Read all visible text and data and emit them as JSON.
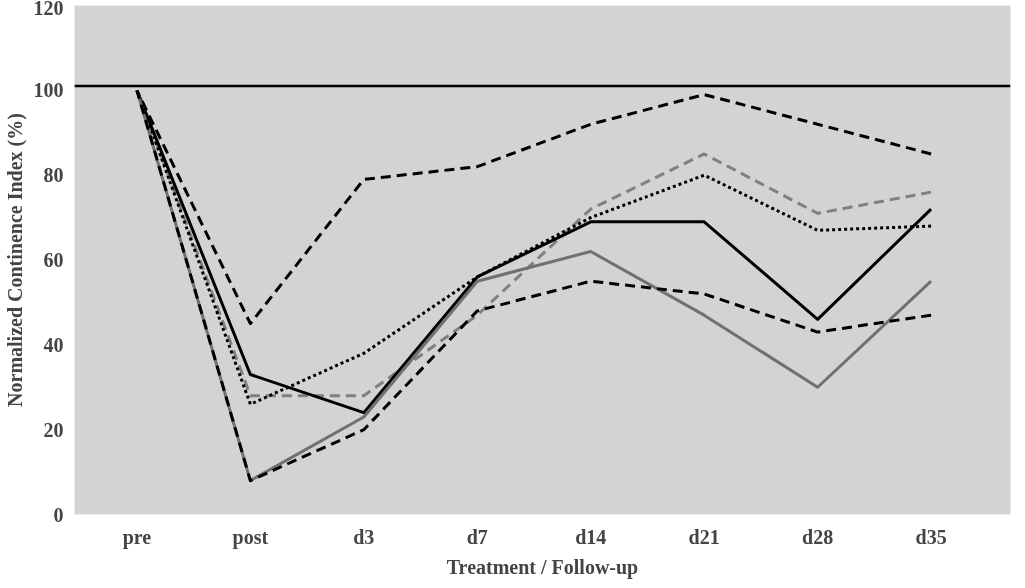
{
  "chart_data": {
    "type": "line",
    "xlabel": "Treatment / Follow-up",
    "ylabel": "Normalized Continence Index (%)",
    "categories": [
      "pre",
      "post",
      "d3",
      "d7",
      "d14",
      "d21",
      "d28",
      "d35"
    ],
    "ylim": [
      0,
      120
    ],
    "yticks": [
      0,
      20,
      40,
      60,
      80,
      100,
      120
    ],
    "grid": false,
    "marker": "none",
    "ref_lines": [
      {
        "axis": "y",
        "value": 101,
        "color": "#000000",
        "line_style": "solid"
      }
    ],
    "series": [
      {
        "color": "#000000",
        "line_style": "dashed",
        "values": [
          100,
          45,
          79,
          82,
          92,
          99,
          92,
          85
        ]
      },
      {
        "color": "#808080",
        "line_style": "dashed",
        "values": [
          100,
          28,
          28,
          47,
          72,
          85,
          71,
          76
        ]
      },
      {
        "color": "#000000",
        "line_style": "dotted",
        "values": [
          100,
          26,
          38,
          56,
          70,
          80,
          67,
          68
        ]
      },
      {
        "color": "#000000",
        "line_style": "solid",
        "values": [
          100,
          33,
          24,
          56,
          69,
          69,
          46,
          72
        ]
      },
      {
        "color": "#707070",
        "line_style": "solid",
        "values": [
          100,
          8,
          23,
          55,
          62,
          47,
          30,
          55
        ]
      },
      {
        "color": "#000000",
        "line_style": "dashed",
        "values": [
          100,
          8,
          20,
          48,
          55,
          52,
          43,
          47
        ]
      }
    ]
  }
}
